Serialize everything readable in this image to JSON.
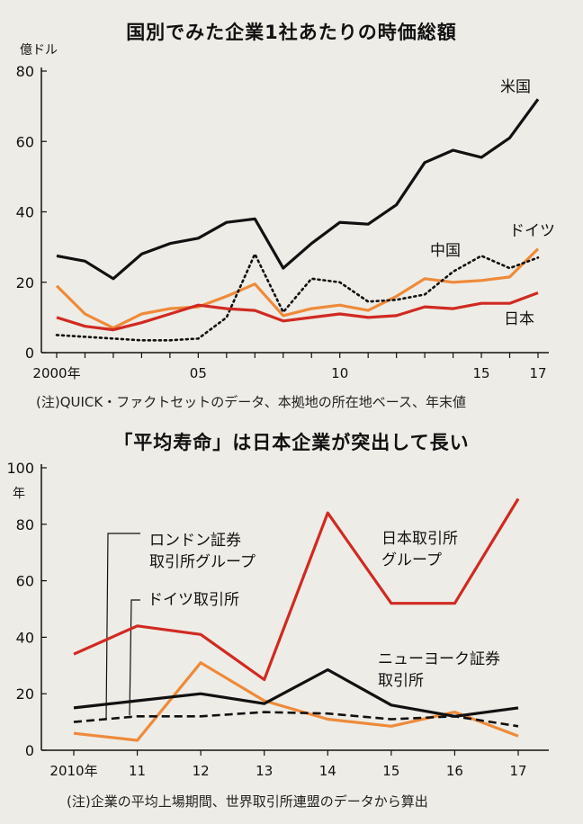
{
  "chart_data": [
    {
      "type": "line",
      "title": "国別でみた企業1社あたりの時価総額",
      "ylabel": "億ドル",
      "ylim": [
        0,
        80
      ],
      "yticks": [
        0,
        20,
        40,
        60,
        80
      ],
      "x": [
        2000,
        2001,
        2002,
        2003,
        2004,
        2005,
        2006,
        2007,
        2008,
        2009,
        2010,
        2011,
        2012,
        2013,
        2014,
        2015,
        2016,
        2017
      ],
      "xtick_labels": [
        {
          "x": 2000,
          "label": "2000年"
        },
        {
          "x": 2005,
          "label": "05"
        },
        {
          "x": 2010,
          "label": "10"
        },
        {
          "x": 2015,
          "label": "15"
        },
        {
          "x": 2017,
          "label": "17"
        }
      ],
      "series": [
        {
          "name": "米国",
          "color": "#111111",
          "style": "solid",
          "values": [
            27.5,
            26,
            21,
            28,
            31,
            32.5,
            37,
            38,
            24,
            31,
            37,
            36.5,
            42,
            54,
            57.5,
            55.5,
            61,
            72
          ]
        },
        {
          "name": "ドイツ",
          "color": "#ee8a3a",
          "style": "solid",
          "values": [
            19,
            11,
            7,
            11,
            12.5,
            13,
            16,
            19.5,
            10.5,
            12.5,
            13.5,
            12,
            16,
            21,
            20,
            20.5,
            21.5,
            29.5
          ]
        },
        {
          "name": "中国",
          "color": "#111111",
          "style": "dotted",
          "values": [
            5,
            4.5,
            4,
            3.5,
            3.5,
            4,
            10,
            28,
            11.5,
            21,
            20,
            14.5,
            15,
            16.5,
            23,
            27.5,
            24,
            27
          ]
        },
        {
          "name": "日本",
          "color": "#d02a22",
          "style": "solid",
          "values": [
            10,
            7.5,
            6.5,
            8.5,
            11,
            13.5,
            12.5,
            12,
            9,
            10,
            11,
            10,
            10.5,
            13,
            12.5,
            14,
            14,
            17
          ]
        }
      ],
      "note": "(注)QUICK・ファクトセットのデータ、本拠地の所在地ベース、年末値"
    },
    {
      "type": "line",
      "title": "「平均寿命」は日本企業が突出して長い",
      "ylabel": "年",
      "ylim": [
        0,
        100
      ],
      "yticks": [
        0,
        20,
        40,
        60,
        80,
        100
      ],
      "x": [
        2010,
        2011,
        2012,
        2013,
        2014,
        2015,
        2016,
        2017
      ],
      "xtick_labels": [
        {
          "x": 2010,
          "label": "2010年"
        },
        {
          "x": 2011,
          "label": "11"
        },
        {
          "x": 2012,
          "label": "12"
        },
        {
          "x": 2013,
          "label": "13"
        },
        {
          "x": 2014,
          "label": "14"
        },
        {
          "x": 2015,
          "label": "15"
        },
        {
          "x": 2016,
          "label": "16"
        },
        {
          "x": 2017,
          "label": "17"
        }
      ],
      "series": [
        {
          "name": "日本取引所グループ",
          "label_lines": [
            "日本取引所",
            "グループ"
          ],
          "color": "#d02a22",
          "style": "solid",
          "values": [
            34,
            44,
            41,
            25,
            84,
            52,
            52,
            89
          ]
        },
        {
          "name": "ドイツ取引所",
          "label_lines": [
            "ドイツ取引所"
          ],
          "color": "#ee8a3a",
          "style": "solid",
          "values": [
            6,
            3.5,
            31,
            17.5,
            11,
            8.5,
            13.5,
            5
          ]
        },
        {
          "name": "ニューヨーク証券取引所",
          "label_lines": [
            "ニューヨーク証券",
            "取引所"
          ],
          "color": "#111111",
          "style": "solid",
          "values": [
            15,
            17.5,
            20,
            16.5,
            28.5,
            16,
            12,
            15
          ]
        },
        {
          "name": "ロンドン証券取引所グループ",
          "label_lines": [
            "ロンドン証券",
            "取引所グループ"
          ],
          "color": "#111111",
          "style": "dashed",
          "values": [
            10,
            12,
            12,
            13.5,
            13,
            11,
            12,
            8.5
          ]
        }
      ],
      "note": "(注)企業の平均上場期間、世界取引所連盟のデータから算出"
    }
  ]
}
